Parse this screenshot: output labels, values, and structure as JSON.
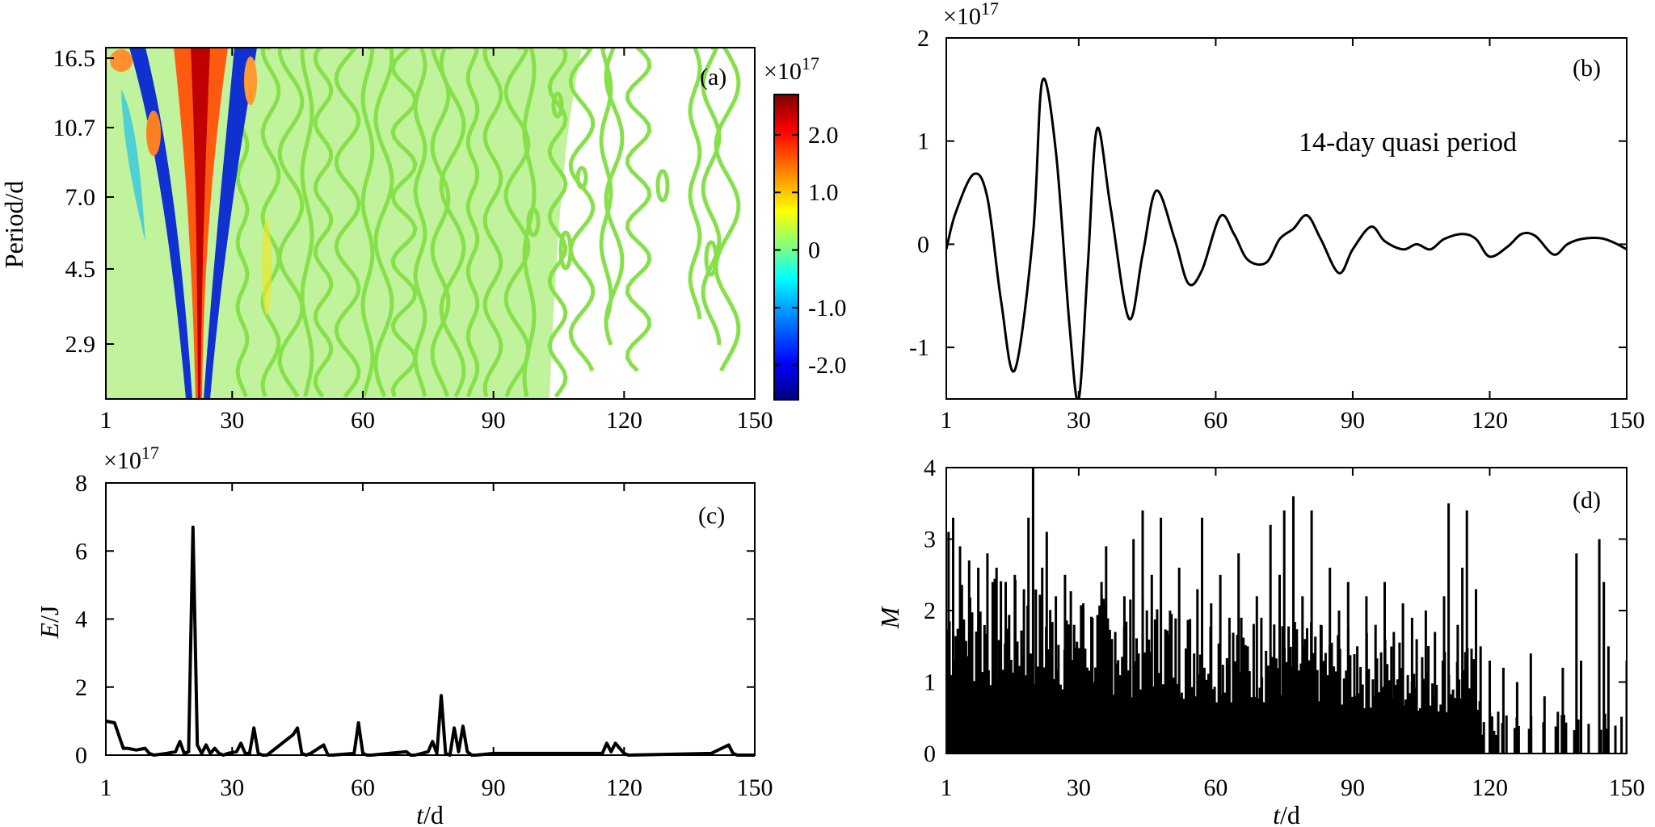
{
  "chart_data": [
    {
      "panel": "a",
      "type": "heatmap",
      "panel_label": "(a)",
      "ylabel": "Period/d",
      "xticks": [
        "1",
        "30",
        "60",
        "90",
        "120",
        "150"
      ],
      "yticks": [
        "16.5",
        "10.7",
        "7.0",
        "4.5",
        "2.9"
      ],
      "colorbar": {
        "exponent_label": "×10",
        "exponent_power": "17",
        "ticks": [
          "2.0",
          "1.0",
          "0",
          "-1.0",
          "-2.0"
        ],
        "range": [
          -2.6,
          2.7
        ],
        "colormap": [
          "#00007f",
          "#0000ff",
          "#00a0ff",
          "#00ffff",
          "#80ff80",
          "#ffff00",
          "#ff8000",
          "#ff0000",
          "#7f0000"
        ]
      },
      "contour_features": {
        "strong_positive_ridge_day": 19,
        "negative_flank_days": [
          14,
          24
        ],
        "background_color": "#80e040"
      }
    },
    {
      "panel": "b",
      "type": "line",
      "panel_label": "(b)",
      "annotation": "14-day quasi period",
      "y_exponent_label": "×10",
      "y_exponent_power": "17",
      "xticks": [
        "1",
        "30",
        "60",
        "90",
        "120",
        "150"
      ],
      "yticks": [
        "2",
        "1",
        "0",
        "-1"
      ],
      "xlim": [
        1,
        150
      ],
      "ylim": [
        -1.5,
        2
      ],
      "series": [
        {
          "x": [
            1,
            3,
            7,
            10,
            13,
            16,
            20,
            22,
            25,
            28,
            30,
            32,
            34,
            37,
            41,
            44,
            47,
            51,
            54,
            57,
            61,
            64,
            67,
            71,
            74,
            77,
            80,
            83,
            87,
            90,
            94,
            97,
            101,
            104,
            107,
            110,
            114,
            117,
            120,
            124,
            127,
            130,
            134,
            137,
            140,
            144,
            147,
            150
          ],
          "y": [
            -0.05,
            0.3,
            0.68,
            0.45,
            -0.55,
            -1.22,
            0.1,
            1.58,
            0.9,
            -0.8,
            -1.5,
            -0.2,
            1.12,
            0.35,
            -0.72,
            -0.1,
            0.52,
            0.05,
            -0.38,
            -0.25,
            0.27,
            0.1,
            -0.15,
            -0.18,
            0.05,
            0.15,
            0.28,
            0.05,
            -0.28,
            -0.05,
            0.17,
            0.03,
            -0.05,
            0.0,
            -0.05,
            0.05,
            0.1,
            0.05,
            -0.12,
            -0.02,
            0.1,
            0.08,
            -0.1,
            0.0,
            0.05,
            0.06,
            0.02,
            -0.05
          ]
        }
      ]
    },
    {
      "panel": "c",
      "type": "line",
      "panel_label": "(c)",
      "xlabel_var": "t",
      "xlabel_unit": "/d",
      "ylabel_var": "E",
      "ylabel_unit": "/J",
      "y_exponent_label": "×10",
      "y_exponent_power": "17",
      "xticks": [
        "1",
        "30",
        "60",
        "90",
        "120",
        "150"
      ],
      "yticks": [
        "8",
        "6",
        "4",
        "2",
        "0"
      ],
      "xlim": [
        1,
        150
      ],
      "ylim": [
        0,
        8
      ],
      "series": [
        {
          "x": [
            1,
            3,
            5,
            6,
            8,
            10,
            11,
            12,
            15,
            17,
            18,
            19,
            20,
            21,
            22,
            23,
            24,
            25,
            26,
            27,
            28,
            29,
            31,
            32,
            33,
            34,
            35,
            36,
            37,
            38,
            44,
            45,
            46,
            47,
            48,
            51,
            52,
            53,
            58,
            59,
            60,
            61,
            62,
            70,
            71,
            72,
            75,
            76,
            77,
            78,
            79,
            80,
            81,
            82,
            83,
            84,
            85,
            86,
            90,
            102,
            115,
            116,
            117,
            118,
            119,
            120,
            121,
            140,
            144,
            145,
            146,
            147,
            150
          ],
          "y": [
            1.0,
            0.95,
            0.2,
            0.2,
            0.15,
            0.2,
            0.05,
            0.0,
            0.05,
            0.1,
            0.4,
            0.05,
            0.1,
            6.7,
            0.3,
            0.05,
            0.3,
            0.05,
            0.2,
            0.05,
            0.0,
            0.05,
            0.1,
            0.35,
            0.05,
            0.05,
            0.8,
            0.05,
            0.0,
            0.0,
            0.6,
            0.8,
            0.05,
            0.0,
            0.05,
            0.3,
            0.0,
            0.0,
            0.05,
            0.95,
            0.05,
            0.0,
            0.0,
            0.1,
            0.0,
            0.0,
            0.1,
            0.4,
            0.05,
            1.75,
            0.05,
            0.0,
            0.8,
            0.1,
            0.85,
            0.1,
            0.0,
            0.0,
            0.05,
            0.05,
            0.05,
            0.35,
            0.1,
            0.35,
            0.2,
            0.05,
            0.0,
            0.05,
            0.3,
            0.05,
            0.0,
            0.0,
            0.0
          ]
        }
      ]
    },
    {
      "panel": "d",
      "type": "bar",
      "panel_label": "(d)",
      "xlabel_var": "t",
      "xlabel_unit": "/d",
      "ylabel_var": "M",
      "xticks": [
        "1",
        "30",
        "60",
        "90",
        "120",
        "150"
      ],
      "yticks": [
        "4",
        "3",
        "2",
        "1",
        "0"
      ],
      "xlim": [
        1,
        150
      ],
      "ylim": [
        0,
        4
      ],
      "peaks": [
        {
          "x": 1.5,
          "y": 3.1
        },
        {
          "x": 2.5,
          "y": 3.3
        },
        {
          "x": 4,
          "y": 2.9
        },
        {
          "x": 6,
          "y": 2.7
        },
        {
          "x": 8,
          "y": 2.6
        },
        {
          "x": 10,
          "y": 2.8
        },
        {
          "x": 12,
          "y": 2.6
        },
        {
          "x": 14,
          "y": 2.4
        },
        {
          "x": 16,
          "y": 2.5
        },
        {
          "x": 18,
          "y": 2.3
        },
        {
          "x": 19,
          "y": 3.3
        },
        {
          "x": 20,
          "y": 4.0
        },
        {
          "x": 22,
          "y": 2.6
        },
        {
          "x": 23,
          "y": 3.1
        },
        {
          "x": 25,
          "y": 2.2
        },
        {
          "x": 27,
          "y": 2.5
        },
        {
          "x": 29,
          "y": 1.8
        },
        {
          "x": 31,
          "y": 2.1
        },
        {
          "x": 33,
          "y": 1.9
        },
        {
          "x": 35,
          "y": 2.4
        },
        {
          "x": 36,
          "y": 2.9
        },
        {
          "x": 38,
          "y": 1.7
        },
        {
          "x": 40,
          "y": 2.2
        },
        {
          "x": 42,
          "y": 3.0
        },
        {
          "x": 44,
          "y": 3.4
        },
        {
          "x": 46,
          "y": 2.5
        },
        {
          "x": 48,
          "y": 3.3
        },
        {
          "x": 50,
          "y": 2.0
        },
        {
          "x": 52,
          "y": 2.6
        },
        {
          "x": 54,
          "y": 1.8
        },
        {
          "x": 56,
          "y": 2.3
        },
        {
          "x": 57,
          "y": 3.3
        },
        {
          "x": 59,
          "y": 2.1
        },
        {
          "x": 61,
          "y": 2.5
        },
        {
          "x": 63,
          "y": 1.9
        },
        {
          "x": 65,
          "y": 2.8
        },
        {
          "x": 67,
          "y": 1.5
        },
        {
          "x": 69,
          "y": 2.2
        },
        {
          "x": 70,
          "y": 1.9
        },
        {
          "x": 72,
          "y": 3.2
        },
        {
          "x": 74,
          "y": 2.5
        },
        {
          "x": 75,
          "y": 3.4
        },
        {
          "x": 77,
          "y": 3.6
        },
        {
          "x": 79,
          "y": 2.2
        },
        {
          "x": 81,
          "y": 3.4
        },
        {
          "x": 83,
          "y": 1.8
        },
        {
          "x": 85,
          "y": 2.6
        },
        {
          "x": 87,
          "y": 2.0
        },
        {
          "x": 89,
          "y": 2.4
        },
        {
          "x": 91,
          "y": 1.5
        },
        {
          "x": 93,
          "y": 2.2
        },
        {
          "x": 95,
          "y": 1.8
        },
        {
          "x": 97,
          "y": 2.4
        },
        {
          "x": 99,
          "y": 1.7
        },
        {
          "x": 101,
          "y": 2.1
        },
        {
          "x": 103,
          "y": 1.9
        },
        {
          "x": 104,
          "y": 1.6
        },
        {
          "x": 106,
          "y": 2.0
        },
        {
          "x": 108,
          "y": 1.7
        },
        {
          "x": 110,
          "y": 2.2
        },
        {
          "x": 111,
          "y": 3.5
        },
        {
          "x": 113,
          "y": 1.8
        },
        {
          "x": 114,
          "y": 2.6
        },
        {
          "x": 115,
          "y": 3.4
        },
        {
          "x": 117,
          "y": 2.3
        },
        {
          "x": 118,
          "y": 1.5
        },
        {
          "x": 120,
          "y": 1.3
        },
        {
          "x": 123,
          "y": 1.2
        },
        {
          "x": 126,
          "y": 1.0
        },
        {
          "x": 129,
          "y": 1.4
        },
        {
          "x": 132,
          "y": 0.8
        },
        {
          "x": 136,
          "y": 1.2
        },
        {
          "x": 139,
          "y": 2.8
        },
        {
          "x": 140,
          "y": 1.3
        },
        {
          "x": 144,
          "y": 3.0
        },
        {
          "x": 145,
          "y": 2.4
        },
        {
          "x": 146,
          "y": 1.5
        },
        {
          "x": 150,
          "y": 1.3
        }
      ]
    }
  ]
}
